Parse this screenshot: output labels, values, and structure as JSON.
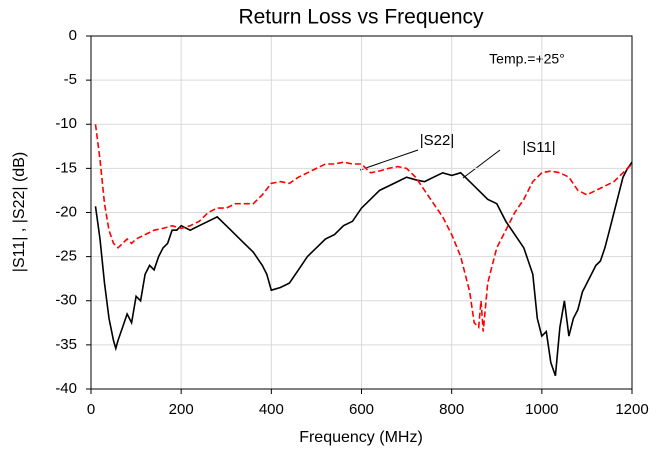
{
  "chart_data": {
    "type": "line",
    "title": "Return Loss vs Frequency",
    "xlabel": "Frequency (MHz)",
    "ylabel": "|S11| , |S22| (dB)",
    "annotations": [
      "Temp.=+25°"
    ],
    "xlim": [
      0,
      1200
    ],
    "xticks": [
      0,
      200,
      400,
      600,
      800,
      1000,
      1200
    ],
    "ylim": [
      -40,
      0
    ],
    "yticks": [
      0,
      -5,
      -10,
      -15,
      -20,
      -25,
      -30,
      -35,
      -40
    ],
    "grid": true,
    "series": [
      {
        "name": "|S11|",
        "color": "#000000",
        "x": [
          10,
          20,
          30,
          40,
          50,
          55,
          60,
          70,
          80,
          90,
          100,
          110,
          120,
          130,
          140,
          150,
          160,
          170,
          180,
          190,
          200,
          220,
          240,
          260,
          280,
          300,
          320,
          340,
          360,
          380,
          390,
          400,
          420,
          440,
          460,
          480,
          500,
          520,
          540,
          560,
          580,
          600,
          620,
          640,
          660,
          680,
          700,
          720,
          740,
          760,
          780,
          800,
          820,
          840,
          860,
          880,
          900,
          920,
          940,
          960,
          980,
          990,
          1000,
          1010,
          1020,
          1030,
          1040,
          1050,
          1060,
          1070,
          1080,
          1090,
          1100,
          1110,
          1120,
          1130,
          1140,
          1150,
          1160,
          1170,
          1180,
          1190,
          1200
        ],
        "values": [
          -19.3,
          -23,
          -28,
          -32,
          -34.5,
          -35.4,
          -34.5,
          -33,
          -31.5,
          -32.5,
          -29.5,
          -30,
          -27,
          -26,
          -26.5,
          -25,
          -24,
          -23.5,
          -22,
          -22,
          -21.5,
          -22,
          -21.5,
          -21,
          -20.5,
          -21.5,
          -22.5,
          -23.5,
          -24.5,
          -26,
          -27,
          -28.8,
          -28.5,
          -28,
          -26.5,
          -25,
          -24,
          -23,
          -22.5,
          -21.5,
          -21,
          -19.5,
          -18.5,
          -17.5,
          -17,
          -16.5,
          -16,
          -16.3,
          -16.5,
          -16,
          -15.5,
          -15.8,
          -15.5,
          -16.5,
          -17.5,
          -18.5,
          -19,
          -21,
          -22.5,
          -24,
          -27,
          -32,
          -34,
          -33.5,
          -37,
          -38.5,
          -33,
          -30,
          -34,
          -32,
          -31,
          -29,
          -28,
          -27,
          -26,
          -25.5,
          -24,
          -22,
          -20,
          -18,
          -16,
          -15,
          -14.3
        ]
      },
      {
        "name": "|S22|",
        "color": "#ff0000",
        "dashed": true,
        "x": [
          10,
          20,
          30,
          40,
          50,
          60,
          70,
          80,
          90,
          100,
          120,
          140,
          160,
          180,
          200,
          220,
          240,
          260,
          280,
          300,
          320,
          340,
          360,
          380,
          400,
          420,
          440,
          460,
          480,
          500,
          520,
          540,
          560,
          580,
          600,
          620,
          640,
          660,
          680,
          700,
          720,
          740,
          760,
          780,
          800,
          820,
          840,
          850,
          860,
          865,
          870,
          880,
          890,
          900,
          920,
          940,
          960,
          980,
          1000,
          1020,
          1040,
          1060,
          1080,
          1100,
          1120,
          1140,
          1160,
          1180,
          1200
        ],
        "values": [
          -10,
          -14,
          -19,
          -22,
          -23.5,
          -24,
          -23.5,
          -23,
          -23.5,
          -23,
          -22.5,
          -22,
          -21.8,
          -21.5,
          -21.8,
          -21.5,
          -21,
          -20,
          -19.5,
          -19.5,
          -19,
          -19,
          -19,
          -18,
          -16.7,
          -16.5,
          -16.7,
          -16,
          -15.5,
          -15,
          -14.5,
          -14.5,
          -14.3,
          -14.5,
          -14.5,
          -15.5,
          -15.3,
          -15,
          -14.8,
          -15,
          -16,
          -17.5,
          -19,
          -20.5,
          -22.5,
          -25,
          -29,
          -32.5,
          -33,
          -30,
          -33.5,
          -28,
          -26,
          -24,
          -22,
          -20,
          -18.5,
          -16.5,
          -15.5,
          -15.3,
          -15.5,
          -16,
          -17.5,
          -18,
          -17.5,
          -17,
          -16.5,
          -15.5,
          -14.5
        ]
      }
    ]
  }
}
